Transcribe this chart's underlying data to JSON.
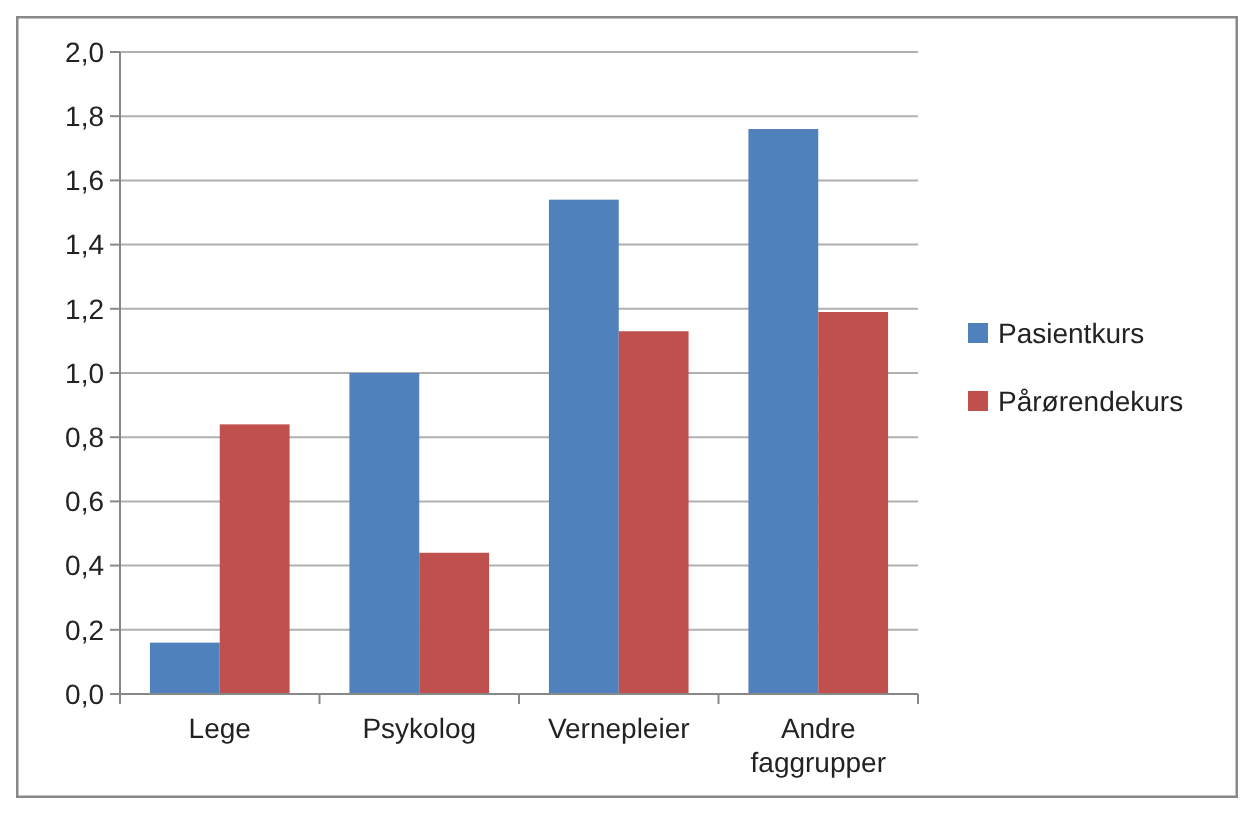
{
  "chart_data": {
    "type": "bar",
    "categories": [
      "Lege",
      "Psykolog",
      "Vernepleier",
      "Andre faggrupper"
    ],
    "series": [
      {
        "name": "Pasientkurs",
        "color": "#4f81bd",
        "values": [
          0.16,
          1.0,
          1.54,
          1.76
        ]
      },
      {
        "name": "Pårørendekurs",
        "color": "#c0504d",
        "values": [
          0.84,
          0.44,
          1.13,
          1.19
        ]
      }
    ],
    "ylim": [
      0,
      2
    ],
    "yticks": [
      {
        "value": 0,
        "label": "0,0"
      },
      {
        "value": 0.2,
        "label": "0,2"
      },
      {
        "value": 0.4,
        "label": "0,4"
      },
      {
        "value": 0.6,
        "label": "0,6"
      },
      {
        "value": 0.8,
        "label": "0,8"
      },
      {
        "value": 1,
        "label": "1,0"
      },
      {
        "value": 1.2,
        "label": "1,2"
      },
      {
        "value": 1.4,
        "label": "1,4"
      },
      {
        "value": 1.6,
        "label": "1,6"
      },
      {
        "value": 1.8,
        "label": "1,8"
      },
      {
        "value": 2,
        "label": "2,0"
      }
    ],
    "grid": "y",
    "legend": "right"
  }
}
